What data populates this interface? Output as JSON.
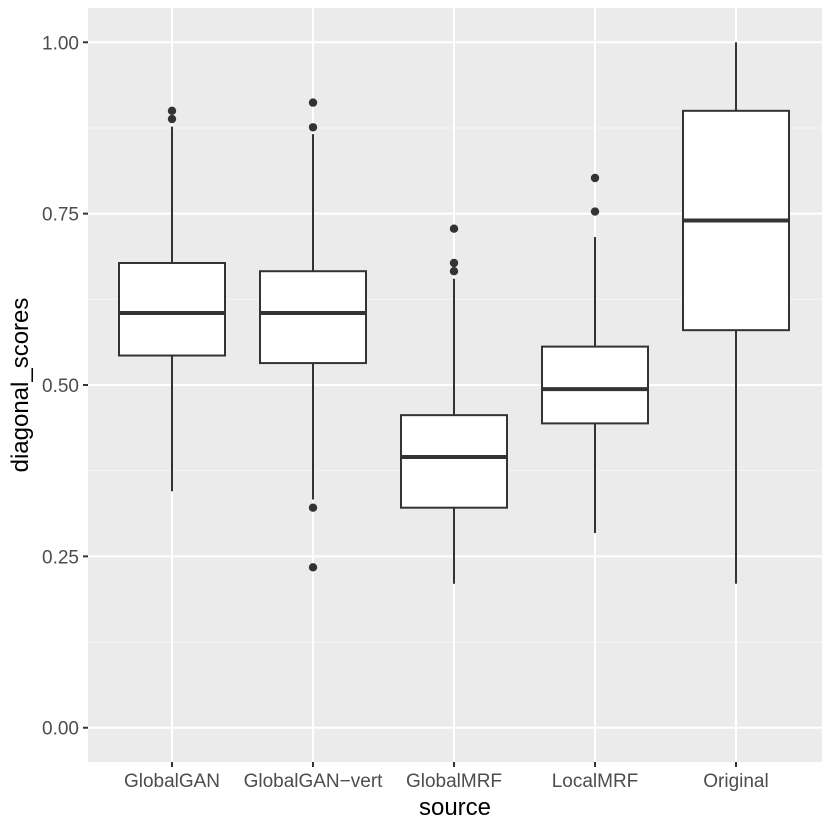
{
  "chart_data": {
    "type": "boxplot",
    "title": "",
    "xlabel": "source",
    "ylabel": "diagonal_scores",
    "ylim": [
      -0.05,
      1.05
    ],
    "y_ticks": [
      0,
      0.25,
      0.5,
      0.75,
      1
    ],
    "y_tick_labels": [
      "0.00",
      "0.25",
      "0.50",
      "0.75",
      "1.00"
    ],
    "grid": true,
    "categories": [
      "GlobalGAN",
      "GlobalGAN−vert",
      "GlobalMRF",
      "LocalMRF",
      "Original"
    ],
    "boxes": [
      {
        "category": "GlobalGAN",
        "whisker_low": 0.345,
        "q1": 0.543,
        "median": 0.605,
        "q3": 0.678,
        "whisker_high": 0.877,
        "outliers": [
          0.888,
          0.9
        ]
      },
      {
        "category": "GlobalGAN−vert",
        "whisker_low": 0.333,
        "q1": 0.532,
        "median": 0.605,
        "q3": 0.666,
        "whisker_high": 0.866,
        "outliers": [
          0.321,
          0.234,
          0.876,
          0.912
        ]
      },
      {
        "category": "GlobalMRF",
        "whisker_low": 0.21,
        "q1": 0.321,
        "median": 0.395,
        "q3": 0.456,
        "whisker_high": 0.655,
        "outliers": [
          0.666,
          0.678,
          0.728
        ]
      },
      {
        "category": "LocalMRF",
        "whisker_low": 0.284,
        "q1": 0.444,
        "median": 0.494,
        "q3": 0.556,
        "whisker_high": 0.716,
        "outliers": [
          0.753,
          0.802
        ]
      },
      {
        "category": "Original",
        "whisker_low": 0.21,
        "q1": 0.58,
        "median": 0.74,
        "q3": 0.9,
        "whisker_high": 1.0,
        "outliers": []
      }
    ]
  },
  "colors": {
    "panel_background": "#ebebeb",
    "grid_major": "#ffffff",
    "grid_minor": "#f5f5f5",
    "box_fill": "#ffffff",
    "box_stroke": "#333333",
    "outlier": "#333333"
  }
}
